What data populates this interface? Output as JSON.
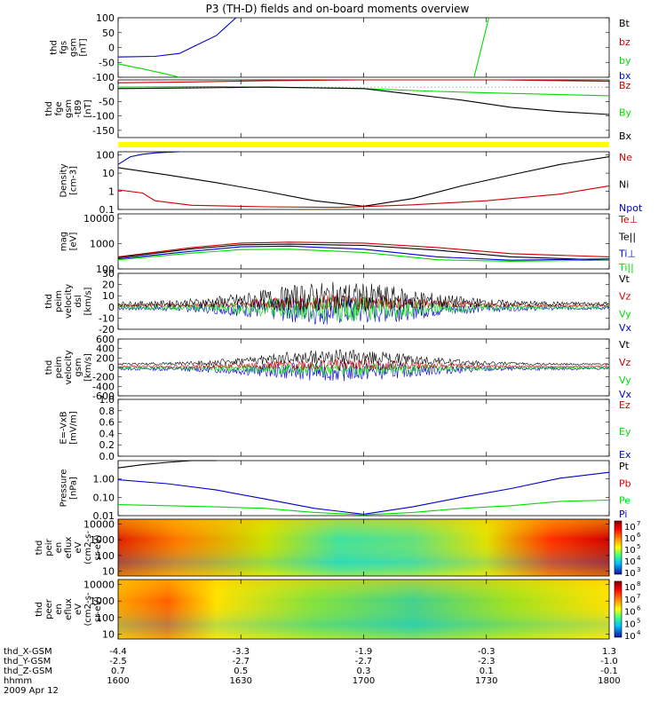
{
  "title": "P3 (TH-D) fields and on-board moments overview",
  "colors": {
    "black": "#000000",
    "red": "#cc0000",
    "green": "#00dd00",
    "blue": "#0000cc",
    "yellow": "#ffff00"
  },
  "ephemeris": {
    "labels": [
      "thd_X-GSM",
      "thd_Y-GSM",
      "thd_Z-GSM",
      "hhmm",
      "2009 Apr 12"
    ],
    "columns": [
      {
        "X": "-4.4",
        "Y": "-2.5",
        "Z": "0.7",
        "hhmm": "1600"
      },
      {
        "X": "-3.3",
        "Y": "-2.7",
        "Z": "0.5",
        "hhmm": "1630"
      },
      {
        "X": "-1.9",
        "Y": "-2.7",
        "Z": "0.3",
        "hhmm": "1700"
      },
      {
        "X": "-0.3",
        "Y": "-2.3",
        "Z": "0.1",
        "hhmm": "1730"
      },
      {
        "X": "1.3",
        "Y": "-1.0",
        "Z": "-0.1",
        "hhmm": "1800"
      }
    ]
  },
  "chart_data": [
    {
      "id": "fgs",
      "type": "line",
      "ylabel": [
        "thd",
        "fgs",
        "gsm",
        "[nT]"
      ],
      "ylim": [
        -100,
        100
      ],
      "ticks": [
        "100",
        "50",
        "0",
        "-50",
        "-100"
      ],
      "legend": [
        "Bt",
        "bz",
        "by",
        "bx"
      ],
      "series": [
        {
          "name": "bx",
          "color": "blue",
          "x": [
            1600,
            1615,
            1625,
            1630,
            1640,
            1648
          ],
          "y": [
            -32,
            -30,
            -20,
            0,
            40,
            100
          ]
        },
        {
          "name": "by",
          "color": "green",
          "x": [
            1600,
            1610,
            1620,
            1625
          ],
          "y": [
            -55,
            -72,
            -90,
            -100
          ]
        },
        {
          "name": "by",
          "color": "green",
          "x": [
            1745,
            1748,
            1751
          ],
          "y": [
            -100,
            0,
            100
          ]
        }
      ]
    },
    {
      "id": "fge",
      "type": "line",
      "ylabel": [
        "thd",
        "fge",
        "gsm",
        "-t89",
        "[nT]"
      ],
      "ylim": [
        -175,
        25
      ],
      "ticks": [
        "0",
        "-50",
        "-100",
        "-150"
      ],
      "legend": [
        "Bz",
        "By",
        "Bx"
      ],
      "series": [
        {
          "name": "Bz",
          "color": "red",
          "x": [
            1600,
            1630,
            1660,
            1700,
            1730,
            1745,
            1755,
            1800
          ],
          "y": [
            15,
            18,
            22,
            25,
            28,
            35,
            32,
            20
          ]
        },
        {
          "name": "By",
          "color": "green",
          "x": [
            1600,
            1640,
            1700,
            1730,
            1750,
            1800
          ],
          "y": [
            0,
            2,
            -5,
            -15,
            -20,
            -30
          ]
        },
        {
          "name": "Bx",
          "color": "black",
          "x": [
            1600,
            1630,
            1660,
            1700,
            1720,
            1740,
            1760,
            1780,
            1800
          ],
          "y": [
            -5,
            -3,
            0,
            -5,
            -25,
            -45,
            -70,
            -85,
            -95
          ]
        }
      ]
    },
    {
      "id": "density",
      "type": "line",
      "log": true,
      "ylabel": [
        "Density",
        "[cm-3]"
      ],
      "ylim": [
        0.1,
        150
      ],
      "ticks": [
        "100",
        "10",
        "1",
        "0.1"
      ],
      "legend": [
        "Ne",
        "Ni",
        "Npot"
      ],
      "series": [
        {
          "name": "Ni",
          "color": "black",
          "x": [
            1600,
            1620,
            1640,
            1660,
            1680,
            1700,
            1720,
            1740,
            1760,
            1780,
            1800
          ],
          "y": [
            20,
            8,
            3,
            1,
            0.3,
            0.15,
            0.4,
            2,
            8,
            30,
            80
          ]
        },
        {
          "name": "Ne",
          "color": "red",
          "x": [
            1600,
            1610,
            1615,
            1630,
            1660,
            1690,
            1720,
            1750,
            1780,
            1800
          ],
          "y": [
            1.2,
            0.8,
            0.3,
            0.17,
            0.14,
            0.13,
            0.18,
            0.3,
            0.7,
            2
          ]
        },
        {
          "name": "Npot",
          "color": "blue",
          "x": [
            1600,
            1605,
            1610,
            1615,
            1620,
            1625
          ],
          "y": [
            30,
            80,
            110,
            130,
            140,
            150
          ]
        }
      ]
    },
    {
      "id": "temp",
      "type": "line",
      "log": true,
      "ylabel": [
        "mag",
        "[eV]"
      ],
      "ylim": [
        100,
        15000
      ],
      "ticks": [
        "10000",
        "1000",
        "100"
      ],
      "legend": [
        "Te⊥",
        "Te||",
        "Ti⊥",
        "Ti||"
      ],
      "series": [
        {
          "name": "Te⊥",
          "color": "red",
          "x": [
            1600,
            1630,
            1650,
            1670,
            1700,
            1730,
            1760,
            1800
          ],
          "y": [
            300,
            700,
            1050,
            1150,
            1050,
            700,
            400,
            300
          ]
        },
        {
          "name": "Te||",
          "color": "black",
          "x": [
            1600,
            1630,
            1650,
            1670,
            1700,
            1730,
            1760,
            1800
          ],
          "y": [
            280,
            620,
            900,
            950,
            850,
            550,
            300,
            220
          ]
        },
        {
          "name": "Ti⊥",
          "color": "blue",
          "x": [
            1600,
            1630,
            1650,
            1670,
            1700,
            1730,
            1760,
            1800
          ],
          "y": [
            250,
            500,
            750,
            800,
            600,
            300,
            220,
            250
          ]
        },
        {
          "name": "Ti||",
          "color": "green",
          "x": [
            1600,
            1630,
            1650,
            1670,
            1700,
            1730,
            1760,
            1800
          ],
          "y": [
            230,
            420,
            580,
            600,
            450,
            230,
            200,
            220
          ]
        }
      ]
    },
    {
      "id": "vel_dsl",
      "type": "line",
      "ylabel": [
        "thd",
        "peim",
        "velocity",
        "dsl",
        "[km/s]"
      ],
      "ylim": [
        -20,
        30
      ],
      "ticks": [
        "30",
        "20",
        "10",
        "0",
        "-10",
        "-20"
      ],
      "legend": [
        "Vt",
        "Vz",
        "Vy",
        "Vx"
      ]
    },
    {
      "id": "vel_gsm",
      "type": "line",
      "ylabel": [
        "thd",
        "peim",
        "velocity",
        "gsm",
        "[km/s]"
      ],
      "ylim": [
        -600,
        600
      ],
      "ticks": [
        "600",
        "400",
        "200",
        "0",
        "-200",
        "-400",
        "-600"
      ],
      "legend": [
        "Vt",
        "Vz",
        "Vy",
        "Vx"
      ]
    },
    {
      "id": "efield",
      "type": "line",
      "ylabel": [
        "E=-VxB",
        "[mV/m]"
      ],
      "ylim": [
        0,
        1
      ],
      "ticks": [
        "1.0",
        "0.8",
        "0.6",
        "0.4",
        "0.2",
        "0.0"
      ],
      "legend": [
        "Ez",
        "Ey",
        "Ex"
      ]
    },
    {
      "id": "pressure",
      "type": "line",
      "log": true,
      "ylabel": [
        "Pressure",
        "[nPa]"
      ],
      "ylim": [
        0.01,
        10
      ],
      "ticks": [
        "1.00",
        "0.10",
        "0.01"
      ],
      "legend": [
        "Pt",
        "Pb",
        "Pe",
        "Pi"
      ],
      "series": [
        {
          "name": "Pt",
          "color": "black",
          "x": [
            1600,
            1610,
            1620,
            1630,
            1640
          ],
          "y": [
            4,
            6,
            8,
            10,
            12
          ]
        },
        {
          "name": "Pi",
          "color": "blue",
          "x": [
            1600,
            1620,
            1640,
            1660,
            1680,
            1700,
            1720,
            1740,
            1760,
            1780,
            1800
          ],
          "y": [
            0.9,
            0.55,
            0.25,
            0.08,
            0.025,
            0.012,
            0.03,
            0.1,
            0.3,
            1.1,
            2.3
          ]
        },
        {
          "name": "Pe",
          "color": "green",
          "x": [
            1600,
            1620,
            1640,
            1660,
            1680,
            1700,
            1720,
            1740,
            1760,
            1780,
            1800
          ],
          "y": [
            0.04,
            0.035,
            0.03,
            0.025,
            0.015,
            0.011,
            0.015,
            0.025,
            0.035,
            0.06,
            0.07
          ]
        }
      ]
    },
    {
      "id": "peir",
      "type": "heatmap",
      "ylabel": [
        "thd",
        "peir",
        "en",
        "eflux",
        "eV",
        "(cm2-s-",
        "sr-eV)"
      ],
      "ylim": [
        5,
        20000
      ],
      "ticks": [
        "10000",
        "1000",
        "100",
        "10"
      ],
      "cbar": [
        "10",
        "10",
        "10",
        "10",
        "10"
      ],
      "cbar_exp": [
        "7",
        "6",
        "5",
        "4",
        "3"
      ]
    },
    {
      "id": "peer",
      "type": "heatmap",
      "ylabel": [
        "thd",
        "peer",
        "en",
        "eflux",
        "eV",
        "(cm2-s-",
        "sr-eV)"
      ],
      "ylim": [
        5,
        20000
      ],
      "ticks": [
        "10000",
        "1000",
        "100",
        "10"
      ],
      "cbar": [
        "10",
        "10",
        "10",
        "10",
        "10"
      ],
      "cbar_exp": [
        "8",
        "7",
        "6",
        "5",
        "4"
      ]
    }
  ],
  "xlim": [
    1600,
    1800
  ]
}
